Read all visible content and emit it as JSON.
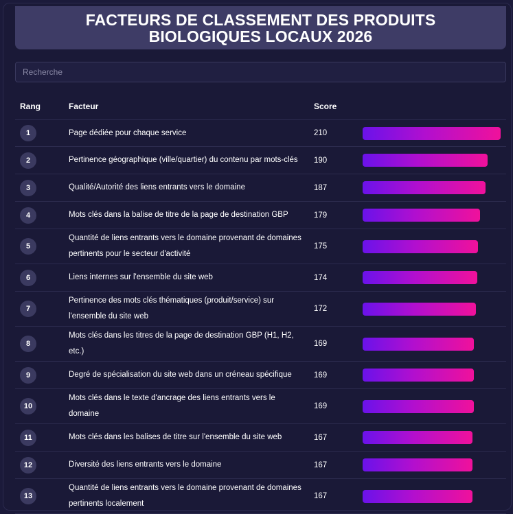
{
  "title": "FACTEURS DE CLASSEMENT DES PRODUITS BIOLOGIQUES LOCAUX 2026",
  "search": {
    "placeholder": "Recherche",
    "value": ""
  },
  "columns": {
    "rank": "Rang",
    "factor": "Facteur",
    "score": "Score"
  },
  "max_score": 210,
  "colors": {
    "bar_start": "#6a12ea",
    "bar_end": "#f0119b",
    "background": "#1a1937",
    "header": "#3e3c66"
  },
  "rows": [
    {
      "rank": "1",
      "factor": "Page dédiée pour chaque service",
      "score": 210
    },
    {
      "rank": "2",
      "factor": "Pertinence géographique (ville/quartier) du contenu par mots-clés",
      "score": 190
    },
    {
      "rank": "3",
      "factor": "Qualité/Autorité des liens entrants vers le domaine",
      "score": 187
    },
    {
      "rank": "4",
      "factor": "Mots clés dans la balise de titre de la page de destination GBP",
      "score": 179
    },
    {
      "rank": "5",
      "factor": "Quantité de liens entrants vers le domaine provenant de domaines pertinents pour le secteur d'activité",
      "score": 175
    },
    {
      "rank": "6",
      "factor": "Liens internes sur l'ensemble du site web",
      "score": 174
    },
    {
      "rank": "7",
      "factor": "Pertinence des mots clés thématiques (produit/service) sur l'ensemble du site web",
      "score": 172
    },
    {
      "rank": "8",
      "factor": "Mots clés dans les titres de la page de destination GBP (H1, H2, etc.)",
      "score": 169
    },
    {
      "rank": "9",
      "factor": "Degré de spécialisation du site web dans un créneau spécifique",
      "score": 169
    },
    {
      "rank": "10",
      "factor": "Mots clés dans le texte d'ancrage des liens entrants vers le domaine",
      "score": 169
    },
    {
      "rank": "11",
      "factor": "Mots clés dans les balises de titre sur l'ensemble du site web",
      "score": 167
    },
    {
      "rank": "12",
      "factor": "Diversité des liens entrants vers le domaine",
      "score": 167
    },
    {
      "rank": "13",
      "factor": "Quantité de liens entrants vers le domaine provenant de domaines pertinents localement",
      "score": 167
    }
  ]
}
